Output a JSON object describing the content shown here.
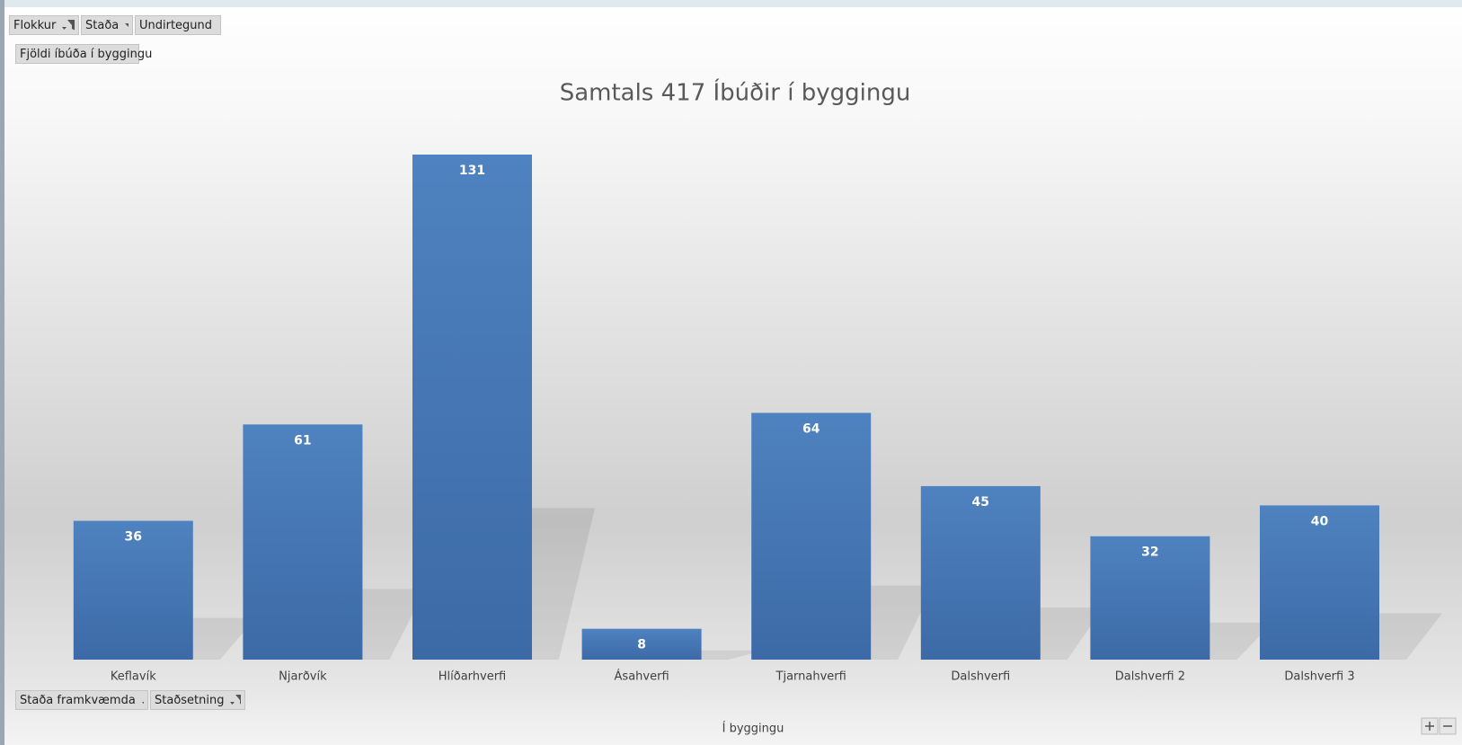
{
  "report_filters": [
    "Flokkur",
    "Staða",
    "Undirtegund"
  ],
  "value_field": "Fjöldi íbúða í byggingu",
  "axis_fields": [
    "Staða framkvæmda",
    "Staðsetning"
  ],
  "chart_data": {
    "type": "bar",
    "title": "Samtals 417 Íbúðir í byggingu",
    "xlabel": "Í byggingu",
    "categories": [
      "Keflavík",
      "Njarðvík",
      "Hlíðarhverfi",
      "Ásahverfi",
      "Tjarnahverfi",
      "Dalshverfi",
      "Dalshverfi 2",
      "Dalshverfi 3"
    ],
    "values": [
      36,
      61,
      131,
      8,
      64,
      45,
      32,
      40
    ],
    "color": "#4a7dbd"
  }
}
